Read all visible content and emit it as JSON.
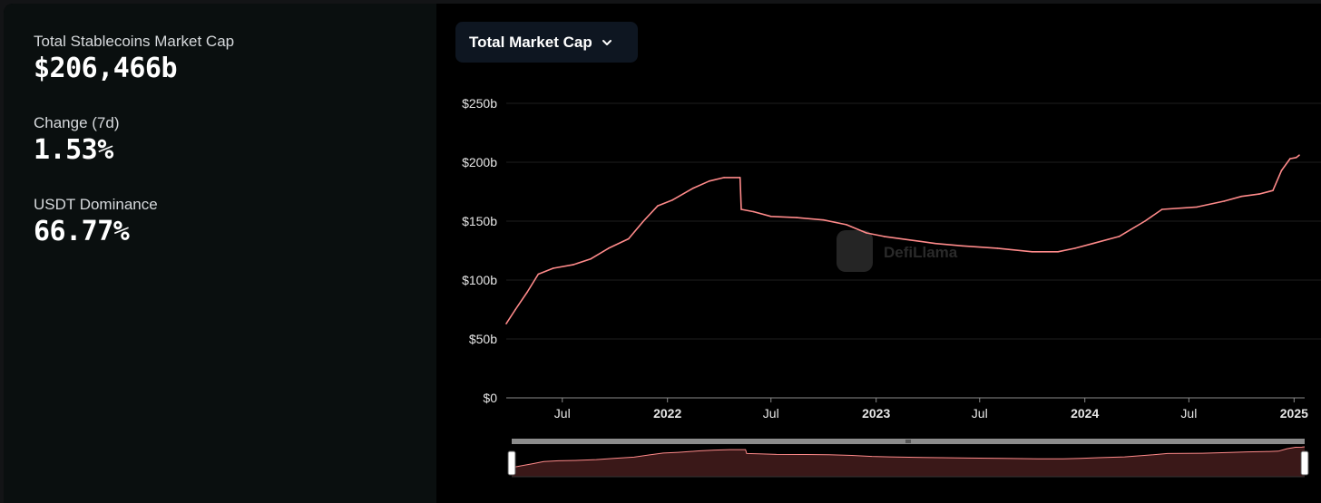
{
  "stats": {
    "market_cap_label": "Total Stablecoins Market Cap",
    "market_cap_value": "$206,466b",
    "change_label": "Change (7d)",
    "change_value": "1.53%",
    "dominance_label": "USDT Dominance",
    "dominance_value": "66.77%"
  },
  "dropdown": {
    "label": "Total Market Cap",
    "icon": "chevron-down-icon"
  },
  "watermark": "DefiLlama",
  "colors": {
    "line": "#ff8a8a",
    "brush_fill": "#3a1818",
    "panel": "#0a0f0f",
    "background": "#000000"
  },
  "chart_data": {
    "type": "line",
    "y_unit": "billions USD",
    "ylim": [
      0,
      250
    ],
    "y_ticks": [
      "$0",
      "$50b",
      "$100b",
      "$150b",
      "$200b",
      "$250b"
    ],
    "x_ticks": [
      {
        "label": "Jul",
        "date": "2021-07-01",
        "bold": false
      },
      {
        "label": "2022",
        "date": "2022-01-01",
        "bold": true
      },
      {
        "label": "Jul",
        "date": "2022-07-01",
        "bold": false
      },
      {
        "label": "2023",
        "date": "2023-01-01",
        "bold": true
      },
      {
        "label": "Jul",
        "date": "2023-07-01",
        "bold": false
      },
      {
        "label": "2024",
        "date": "2024-01-01",
        "bold": true
      },
      {
        "label": "Jul",
        "date": "2024-07-01",
        "bold": false
      },
      {
        "label": "2025",
        "date": "2025-01-01",
        "bold": true
      }
    ],
    "grid": true,
    "legend": "none",
    "series": [
      {
        "points": [
          [
            "2021-03-25",
            63
          ],
          [
            "2021-04-10",
            75
          ],
          [
            "2021-05-01",
            90
          ],
          [
            "2021-05-20",
            105
          ],
          [
            "2021-06-15",
            110
          ],
          [
            "2021-07-20",
            113
          ],
          [
            "2021-08-20",
            118
          ],
          [
            "2021-09-20",
            127
          ],
          [
            "2021-10-25",
            135
          ],
          [
            "2021-11-20",
            150
          ],
          [
            "2021-12-15",
            163
          ],
          [
            "2022-01-10",
            168
          ],
          [
            "2022-02-15",
            178
          ],
          [
            "2022-03-15",
            184
          ],
          [
            "2022-04-10",
            187
          ],
          [
            "2022-05-08",
            187
          ],
          [
            "2022-05-10",
            160
          ],
          [
            "2022-06-01",
            158
          ],
          [
            "2022-07-01",
            154
          ],
          [
            "2022-08-15",
            153
          ],
          [
            "2022-10-01",
            151
          ],
          [
            "2022-11-10",
            147
          ],
          [
            "2022-12-15",
            140
          ],
          [
            "2023-01-15",
            137
          ],
          [
            "2023-03-01",
            134
          ],
          [
            "2023-04-15",
            131
          ],
          [
            "2023-06-01",
            129
          ],
          [
            "2023-08-01",
            127
          ],
          [
            "2023-10-01",
            124
          ],
          [
            "2023-11-15",
            124
          ],
          [
            "2023-12-15",
            127
          ],
          [
            "2024-01-15",
            131
          ],
          [
            "2024-03-01",
            137
          ],
          [
            "2024-04-15",
            150
          ],
          [
            "2024-05-15",
            160
          ],
          [
            "2024-07-15",
            162
          ],
          [
            "2024-09-01",
            167
          ],
          [
            "2024-10-01",
            171
          ],
          [
            "2024-11-01",
            173
          ],
          [
            "2024-11-25",
            176
          ],
          [
            "2024-12-10",
            193
          ],
          [
            "2024-12-25",
            203
          ],
          [
            "2025-01-05",
            204
          ],
          [
            "2025-01-10",
            206
          ]
        ]
      }
    ]
  }
}
